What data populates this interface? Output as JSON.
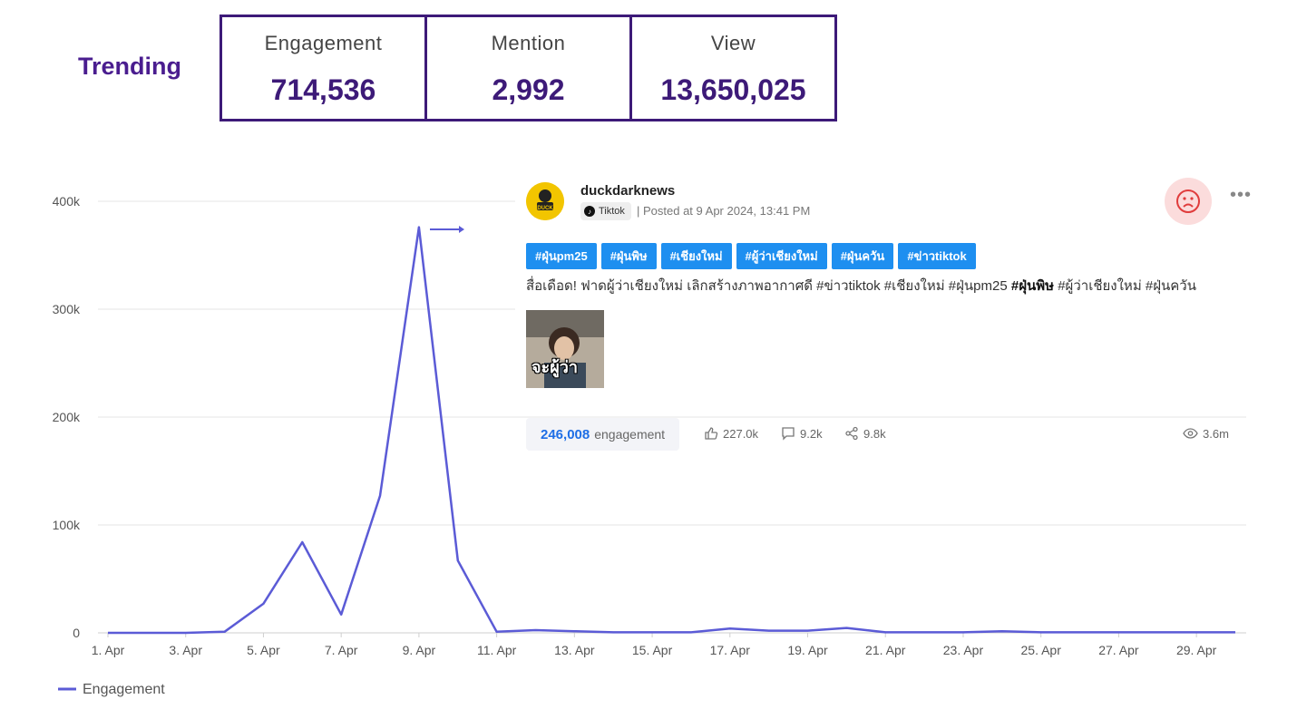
{
  "header": {
    "title": "Trending",
    "stats": [
      {
        "label": "Engagement",
        "value": "714,536"
      },
      {
        "label": "Mention",
        "value": "2,992"
      },
      {
        "label": "View",
        "value": "13,650,025"
      }
    ]
  },
  "post": {
    "author": "duckdarknews",
    "platform": "Tiktok",
    "posted": "| Posted at 9 Apr 2024, 13:41 PM",
    "avatar_text": "DUCK",
    "tags": [
      "#ฝุ่นpm25",
      "#ฝุ่นพิษ",
      "#เชียงใหม่",
      "#ผู้ว่าเชียงใหม่",
      "#ฝุ่นควัน",
      "#ข่าวtiktok"
    ],
    "text_before": "สื่อเดือด! ฟาดผู้ว่าเชียงใหม่ เลิกสร้างภาพอากาศดี #ข่าวtiktok #เชียงใหม่ #ฝุ่นpm25 ",
    "text_bold": "#ฝุ่นพิษ",
    "text_after": " #ผู้ว่าเชียงใหม่ #ฝุ่นควัน",
    "thumbnail_caption": "จะผู้ว่า",
    "engagement_value": "246,008",
    "engagement_label": "engagement",
    "likes": "227.0k",
    "comments": "9.2k",
    "shares": "9.8k",
    "views": "3.6m",
    "sentiment_icon": "sad-face-icon",
    "colors": {
      "tag": "#1e8ff0",
      "sentiment_bg": "#fbdcdc",
      "sentiment_face": "#e03c3c"
    }
  },
  "chart_data": {
    "type": "line",
    "x": [
      "1. Apr",
      "2. Apr",
      "3. Apr",
      "4. Apr",
      "5. Apr",
      "6. Apr",
      "7. Apr",
      "8. Apr",
      "9. Apr",
      "10. Apr",
      "11. Apr",
      "12. Apr",
      "13. Apr",
      "14. Apr",
      "15. Apr",
      "16. Apr",
      "17. Apr",
      "18. Apr",
      "19. Apr",
      "20. Apr",
      "21. Apr",
      "22. Apr",
      "23. Apr",
      "24. Apr",
      "25. Apr",
      "26. Apr",
      "27. Apr",
      "28. Apr",
      "29. Apr",
      "30. Apr"
    ],
    "x_tick_labels": [
      "1. Apr",
      "3. Apr",
      "5. Apr",
      "7. Apr",
      "9. Apr",
      "11. Apr",
      "13. Apr",
      "15. Apr",
      "17. Apr",
      "19. Apr",
      "21. Apr",
      "23. Apr",
      "25. Apr",
      "27. Apr",
      "29. Apr"
    ],
    "series": [
      {
        "name": "Engagement",
        "color": "#5b5bd6",
        "values": [
          0,
          0,
          0,
          1000,
          27000,
          84000,
          17000,
          127000,
          376000,
          67000,
          1000,
          2500,
          1500,
          500,
          500,
          500,
          4000,
          2000,
          2000,
          4500,
          500,
          500,
          500,
          1500,
          500,
          500,
          500,
          500,
          500,
          500
        ]
      }
    ],
    "y_ticks": [
      0,
      100000,
      200000,
      300000,
      400000
    ],
    "y_tick_labels": [
      "0",
      "100k",
      "200k",
      "300k",
      "400k"
    ],
    "ylim": [
      0,
      400000
    ],
    "grid": true,
    "legend": "bottom-left"
  }
}
